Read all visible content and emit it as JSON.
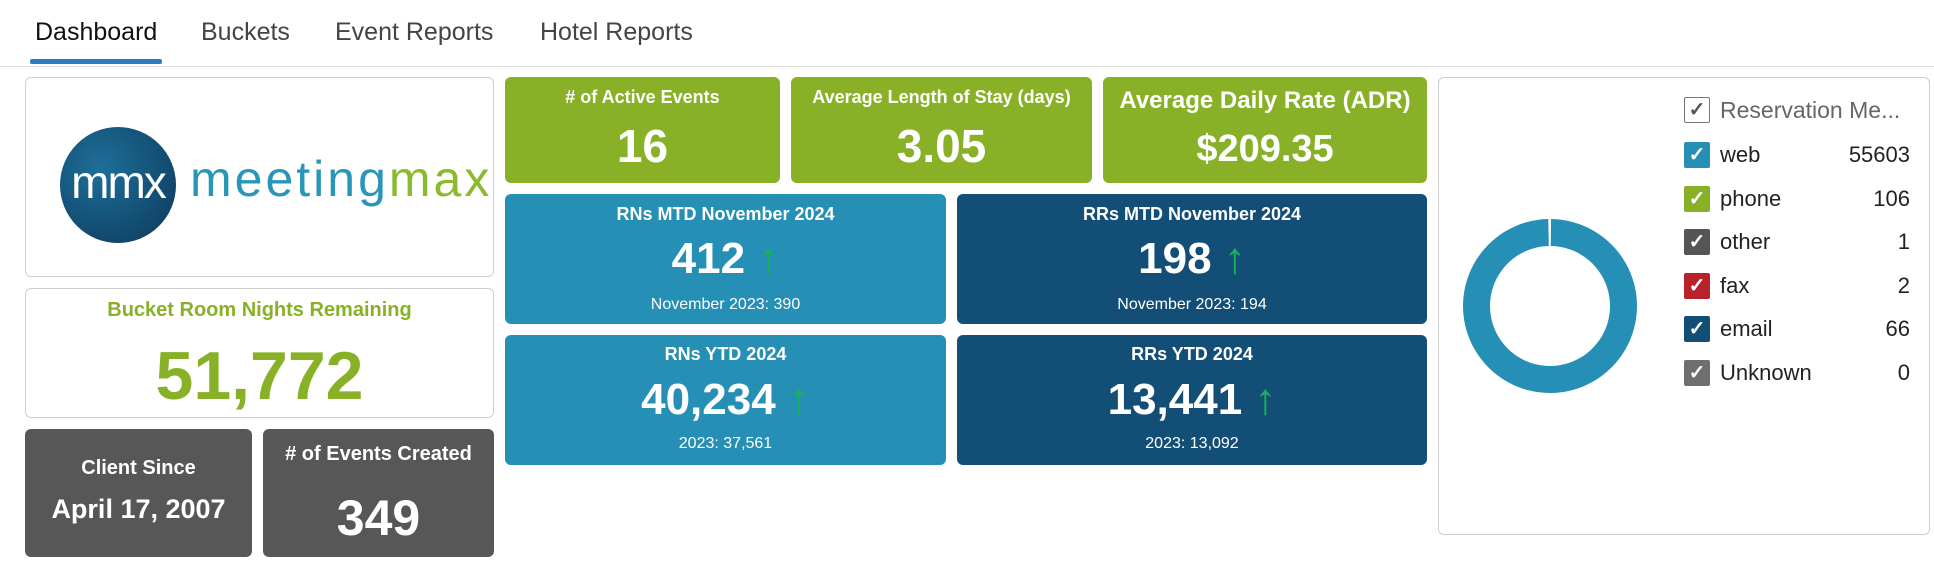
{
  "tabs": [
    "Dashboard",
    "Buckets",
    "Event Reports",
    "Hotel Reports"
  ],
  "logo": {
    "mark": "mmx",
    "word_a": "meeting",
    "word_b": "max"
  },
  "bucket": {
    "label": "Bucket Room Nights Remaining",
    "value": "51,772"
  },
  "client_since": {
    "label": "Client Since",
    "value": "April 17, 2007"
  },
  "events_created": {
    "label": "# of Events Created",
    "value": "349"
  },
  "active_events": {
    "label": "# of Active Events",
    "value": "16"
  },
  "avg_stay": {
    "label": "Average Length of Stay (days)",
    "value": "3.05"
  },
  "adr": {
    "label": "Average Daily Rate (ADR)",
    "value": "$209.35"
  },
  "rns_mtd": {
    "label": "RNs MTD November 2024",
    "value": "412",
    "arrow": "↑",
    "compare": "November 2023: 390"
  },
  "rrs_mtd": {
    "label": "RRs MTD November 2024",
    "value": "198",
    "arrow": "↑",
    "compare": "November 2023: 194"
  },
  "rns_ytd": {
    "label": "RNs YTD 2024",
    "value": "40,234",
    "arrow": "↑",
    "compare": "2023: 37,561"
  },
  "rrs_ytd": {
    "label": "RRs YTD 2024",
    "value": "13,441",
    "arrow": "↑",
    "compare": "2023: 13,092"
  },
  "legend": {
    "header": "Reservation Me...",
    "check": "✓",
    "items": [
      {
        "label": "web",
        "value": "55603",
        "color": "#268fb5"
      },
      {
        "label": "phone",
        "value": "106",
        "color": "#89b127"
      },
      {
        "label": "other",
        "value": "1",
        "color": "#555555"
      },
      {
        "label": "fax",
        "value": "2",
        "color": "#b8232b"
      },
      {
        "label": "email",
        "value": "66",
        "color": "#134e77"
      },
      {
        "label": "Unknown",
        "value": "0",
        "color": "#6f6f6f"
      }
    ]
  },
  "chart_data": {
    "type": "pie",
    "donut": true,
    "title": "",
    "categories": [
      "web",
      "phone",
      "other",
      "fax",
      "email",
      "Unknown"
    ],
    "values": [
      55603,
      106,
      1,
      2,
      66,
      0
    ],
    "colors": [
      "#268fb5",
      "#89b127",
      "#555555",
      "#b8232b",
      "#134e77",
      "#6f6f6f"
    ],
    "legend": "right"
  }
}
